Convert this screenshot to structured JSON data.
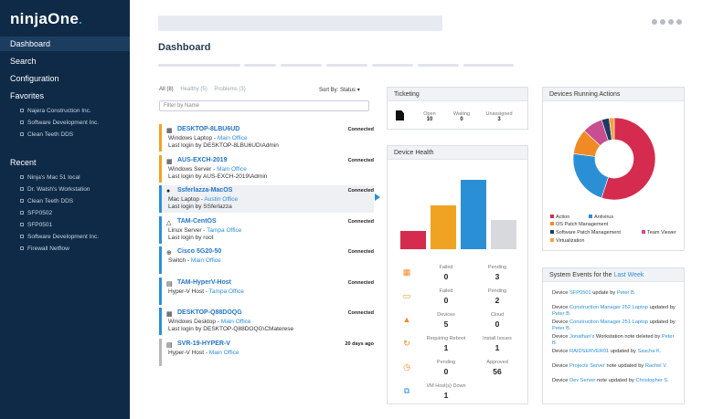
{
  "app": {
    "logo": "ninjaOne",
    "logo_dot": "."
  },
  "nav": {
    "dashboard": "Dashboard",
    "search": "Search",
    "configuration": "Configuration",
    "favorites": "Favorites",
    "recent": "Recent"
  },
  "favorites": [
    "Najera Construction Inc.",
    "Software Development Inc.",
    "Clean Teeth DDS"
  ],
  "recent": [
    "Ninja's Mac 51 local",
    "Dr. Walsh's Workstation",
    "Clean Teeth DDS",
    "SFP0502",
    "SFP0501",
    "Software Development Inc.",
    "Firewall Netflow"
  ],
  "page_title": "Dashboard",
  "filters": {
    "all": "All (8)",
    "healthy": "Healthy (5)",
    "problems": "Problems (3)",
    "sort": "Sort By: Status",
    "placeholder": "Filter by Name"
  },
  "devices": [
    {
      "name": "DESKTOP-8LBU6UD",
      "type": "Windows Laptop - ",
      "loc": "Main Office",
      "last": "Last login by DESKTOP-8LBU6UD\\Admin",
      "status": "Connected",
      "color": "#f0a322"
    },
    {
      "name": "AUS-EXCH-2019",
      "type": "Windows Server - ",
      "loc": "Main Office",
      "last": "Last login by AUS-EXCH-2019\\Admin",
      "status": "Connected",
      "color": "#f0a322"
    },
    {
      "name": "Ssferlazza-MacOS",
      "type": "Mac Laptop - ",
      "loc": "Austin Office",
      "last": "Last login by SSferlazza",
      "status": "Connected",
      "color": "#2b8fd6"
    },
    {
      "name": "TAM-CentOS",
      "type": "Linux Server - ",
      "loc": "Tampa Office",
      "last": "Last login by root",
      "status": "Connected",
      "color": "#2b8fd6"
    },
    {
      "name": "Cisco 5G20-50",
      "type": "Switch - ",
      "loc": "Main Office",
      "last": "",
      "status": "Connected",
      "color": "#2b8fd6"
    },
    {
      "name": "TAM-HyperV-Host",
      "type": "Hyper-V Host - ",
      "loc": "Tampa Office",
      "last": "",
      "status": "Connected",
      "color": "#2b8fd6"
    },
    {
      "name": "DESKTOP-Q88DOQG",
      "type": "Windows Desktop - ",
      "loc": "Main Office",
      "last": "Last login by DESKTOP-Q88DOQG\\CMaterese",
      "status": "Connected",
      "color": "#2b8fd6"
    },
    {
      "name": "SVR-19-HYPER-V",
      "type": "Hyper-V Host - ",
      "loc": "Main Office",
      "last": "",
      "status": "20 days ago",
      "color": "#b5b8bf"
    }
  ],
  "ticketing": {
    "title": "Ticketing",
    "open_label": "Open",
    "open": "10",
    "waiting_label": "Waiting",
    "waiting": "0",
    "unassigned_label": "Unassigned",
    "unassigned": "3"
  },
  "health": {
    "title": "Device Health",
    "bars": [
      {
        "value": 22,
        "color": "#d42b4e"
      },
      {
        "value": 53,
        "color": "#f0a322"
      },
      {
        "value": 84,
        "color": "#2b8fd6"
      },
      {
        "value": 36,
        "color": "#d8d9dc"
      }
    ],
    "rows": [
      {
        "icon": "windows-icon",
        "glyph": "▦",
        "color": "#f08a24",
        "a_label": "Failed",
        "a": "0",
        "b_label": "Pending",
        "b": "3"
      },
      {
        "icon": "browser-window-icon",
        "glyph": "▭",
        "color": "#f08a24",
        "a_label": "Failed",
        "a": "0",
        "b_label": "Pending",
        "b": "2"
      },
      {
        "icon": "warning-icon",
        "glyph": "▲",
        "color": "#f08a24",
        "a_label": "Devices",
        "a": "5",
        "b_label": "Cloud",
        "b": "0"
      },
      {
        "icon": "refresh-icon",
        "glyph": "↻",
        "color": "#f08a24",
        "a_label": "Requiring Reboot",
        "a": "1",
        "b_label": "Install Issues",
        "b": "1"
      },
      {
        "icon": "clock-icon",
        "glyph": "◷",
        "color": "#f08a24",
        "a_label": "Pending",
        "a": "0",
        "b_label": "Approved",
        "b": "56"
      },
      {
        "icon": "copy-icon",
        "glyph": "⧉",
        "color": "#2b8fd6",
        "a_label": "VM Host(s) Down",
        "a": "1",
        "b_label": "",
        "b": ""
      }
    ]
  },
  "actions": {
    "title": "Devices Running Actions",
    "chart_data": {
      "type": "pie",
      "slices": [
        {
          "name": "Action",
          "value": 55,
          "color": "#d42b4e"
        },
        {
          "name": "Antivirus",
          "value": 22,
          "color": "#2b8fd6"
        },
        {
          "name": "OS Patch Management",
          "value": 10,
          "color": "#f08a24"
        },
        {
          "name": "Team Viewer",
          "value": 8,
          "color": "#c84e8f"
        },
        {
          "name": "Software Patch Management",
          "value": 3,
          "color": "#1e3a66"
        },
        {
          "name": "Virtualization",
          "value": 2,
          "color": "#f7a33a"
        }
      ]
    }
  },
  "events": {
    "title_pre": "System Events for the ",
    "title_link": "Last Week",
    "items": [
      [
        {
          "t": "Device "
        },
        {
          "t": "SFP0501",
          "l": 1
        },
        {
          "t": " update by "
        },
        {
          "t": "Peter B.",
          "l": 1
        }
      ],
      [
        {
          "t": "Device "
        },
        {
          "t": "Construction Manager 252 Laptop",
          "l": 1
        },
        {
          "t": " updated by "
        },
        {
          "t": "Peter B.",
          "l": 1
        }
      ],
      [
        {
          "t": "Device "
        },
        {
          "t": "Construction Manager 251 Laptop",
          "l": 1
        },
        {
          "t": " updated by "
        },
        {
          "t": "Peter B.",
          "l": 1
        }
      ],
      [
        {
          "t": "Device "
        },
        {
          "t": "Jonathan's",
          "l": 1
        },
        {
          "t": " Workstation note deleted by "
        },
        {
          "t": "Peter B.",
          "l": 1
        }
      ],
      [
        {
          "t": "Device "
        },
        {
          "t": "RAIDSERVER01",
          "l": 1
        },
        {
          "t": " updated by "
        },
        {
          "t": "Sascha K.",
          "l": 1
        }
      ],
      [
        {
          "t": "Device "
        },
        {
          "t": "Projects Server",
          "l": 1
        },
        {
          "t": " note updated by "
        },
        {
          "t": "Rachel V.",
          "l": 1
        }
      ],
      [
        {
          "t": "Device "
        },
        {
          "t": "Dev Server",
          "l": 1
        },
        {
          "t": " note updated by "
        },
        {
          "t": "Christopher S.",
          "l": 1
        }
      ]
    ]
  }
}
